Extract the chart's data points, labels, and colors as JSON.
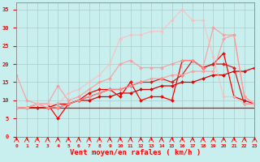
{
  "xlabel": "Vent moyen/en rafales ( km/h )",
  "xlim": [
    0,
    23
  ],
  "ylim": [
    0,
    37
  ],
  "xticks": [
    0,
    1,
    2,
    3,
    4,
    5,
    6,
    7,
    8,
    9,
    10,
    11,
    12,
    13,
    14,
    15,
    16,
    17,
    18,
    19,
    20,
    21,
    22,
    23
  ],
  "yticks": [
    0,
    5,
    10,
    15,
    20,
    25,
    30,
    35
  ],
  "background_color": "#c8eeee",
  "grid_color": "#aacccc",
  "lines": [
    {
      "x": [
        0,
        1,
        2,
        3,
        4,
        5,
        6,
        7,
        8,
        9,
        10,
        11,
        12,
        13,
        14,
        15,
        16,
        17,
        18,
        19,
        20,
        21,
        22,
        23
      ],
      "y": [
        8,
        8,
        8,
        8,
        8,
        8,
        8,
        8,
        8,
        8,
        8,
        8,
        8,
        8,
        8,
        8,
        8,
        8,
        8,
        8,
        8,
        8,
        8,
        8
      ],
      "color": "#ff0000",
      "alpha": 1.0,
      "linewidth": 0.9,
      "marker": null
    },
    {
      "x": [
        0,
        1,
        2,
        3,
        4,
        5,
        6,
        7,
        8,
        9,
        10,
        11,
        12,
        13,
        14,
        15,
        16,
        17,
        18,
        19,
        20,
        21,
        22,
        23
      ],
      "y": [
        8,
        8,
        8,
        8,
        9,
        9,
        10,
        10,
        11,
        11,
        12,
        12,
        13,
        13,
        14,
        14,
        15,
        15,
        16,
        17,
        17,
        18,
        18,
        19
      ],
      "color": "#dd0000",
      "alpha": 1.0,
      "linewidth": 0.9,
      "marker": "D",
      "markersize": 2.0
    },
    {
      "x": [
        0,
        1,
        2,
        3,
        4,
        5,
        6,
        7,
        8,
        9,
        10,
        11,
        12,
        13,
        14,
        15,
        16,
        17,
        18,
        19,
        20,
        21,
        22,
        23
      ],
      "y": [
        8,
        8,
        9,
        9,
        5,
        9,
        10,
        12,
        13,
        13,
        11,
        15,
        10,
        11,
        11,
        10,
        21,
        21,
        19,
        20,
        23,
        11,
        10,
        9
      ],
      "color": "#ff0000",
      "alpha": 1.0,
      "linewidth": 0.9,
      "marker": "D",
      "markersize": 2.0
    },
    {
      "x": [
        0,
        1,
        2,
        3,
        4,
        5,
        6,
        7,
        8,
        9,
        10,
        11,
        12,
        13,
        14,
        15,
        16,
        17,
        18,
        19,
        20,
        21,
        22,
        23
      ],
      "y": [
        8,
        8,
        8,
        8,
        8,
        9,
        10,
        11,
        12,
        13,
        13,
        14,
        15,
        15,
        16,
        15,
        17,
        21,
        19,
        20,
        20,
        19,
        9,
        9
      ],
      "color": "#cc2222",
      "alpha": 1.0,
      "linewidth": 0.9,
      "marker": "D",
      "markersize": 2.0
    },
    {
      "x": [
        0,
        1,
        2,
        3,
        4,
        5,
        6,
        7,
        8,
        9,
        10,
        11,
        12,
        13,
        14,
        15,
        16,
        17,
        18,
        19,
        20,
        21,
        22,
        23
      ],
      "y": [
        17,
        10,
        9,
        8,
        8,
        9,
        10,
        11,
        12,
        13,
        13,
        14,
        15,
        16,
        16,
        17,
        17,
        18,
        18,
        18,
        27,
        28,
        11,
        9
      ],
      "color": "#ff9999",
      "alpha": 0.85,
      "linewidth": 0.9,
      "marker": "D",
      "markersize": 2.0
    },
    {
      "x": [
        0,
        1,
        2,
        3,
        4,
        5,
        6,
        7,
        8,
        9,
        10,
        11,
        12,
        13,
        14,
        15,
        16,
        17,
        18,
        19,
        20,
        21,
        22,
        23
      ],
      "y": [
        8,
        8,
        9,
        9,
        14,
        10,
        11,
        13,
        15,
        16,
        20,
        21,
        19,
        19,
        19,
        20,
        21,
        21,
        19,
        30,
        28,
        28,
        11,
        9
      ],
      "color": "#ff9999",
      "alpha": 0.85,
      "linewidth": 0.9,
      "marker": "D",
      "markersize": 2.0
    },
    {
      "x": [
        0,
        1,
        2,
        3,
        4,
        5,
        6,
        7,
        8,
        9,
        10,
        11,
        12,
        13,
        14,
        15,
        16,
        17,
        18,
        19,
        20,
        21,
        22,
        23
      ],
      "y": [
        8,
        8,
        9,
        9,
        9,
        12,
        13,
        15,
        17,
        20,
        27,
        28,
        28,
        29,
        29,
        32,
        35,
        32,
        32,
        22,
        11,
        11,
        9,
        9
      ],
      "color": "#ffbbbb",
      "alpha": 0.75,
      "linewidth": 0.9,
      "marker": "D",
      "markersize": 2.0
    }
  ]
}
